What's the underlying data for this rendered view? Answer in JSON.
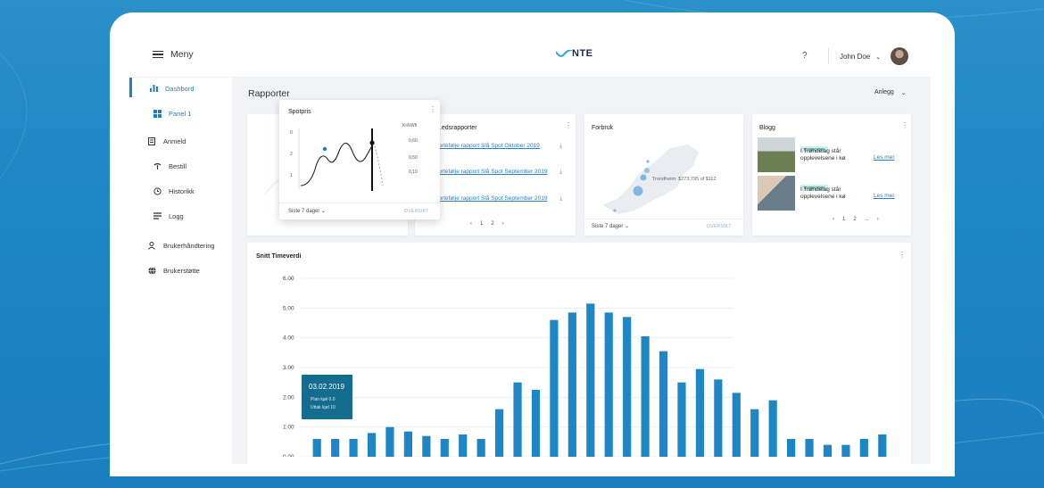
{
  "colors": {
    "accent": "#1b7fc0",
    "bar": "#1f86c6",
    "bar_light": "#a9d3ee",
    "tooltip_bg": "#146c8f",
    "tag_bg": "#c8f0e8"
  },
  "topbar": {
    "menu_label": "Meny",
    "logo": "NTE",
    "help": "?",
    "user_name": "John Doe"
  },
  "sidebar": {
    "items": [
      {
        "label": "Dashbord",
        "icon": "bar-chart-icon"
      },
      {
        "label": "Panel 1",
        "icon": "grid-icon"
      },
      {
        "label": "Anmeld",
        "icon": "document-icon"
      },
      {
        "label": "Bestill",
        "icon": "order-icon"
      },
      {
        "label": "Historikk",
        "icon": "history-icon"
      },
      {
        "label": "Logg",
        "icon": "list-icon"
      },
      {
        "label": "Brukerhåndtering",
        "icon": "user-icon"
      },
      {
        "label": "Brukerstøtte",
        "icon": "globe-icon"
      }
    ]
  },
  "main": {
    "title": "Rapporter",
    "filter_label": "Anlegg"
  },
  "spotpris": {
    "title": "Spotpris",
    "unit": "Kr/kWh",
    "y_left": [
      "0",
      "2",
      "1"
    ],
    "y_right": [
      "0,60",
      "0,50",
      "0,10"
    ],
    "period": "Siste 7 dager",
    "link": "OVERSIKT"
  },
  "rapporter": {
    "title": "...edsrapporter",
    "items": [
      "Portefølje rapport Slå Spot Oktober 2019",
      "Portefølje rapport Slå Spot September 2019",
      "Portefølje rapport Slå Spot September 2019"
    ],
    "pages": [
      "1",
      "2"
    ]
  },
  "forbruk": {
    "title": "Forbruk",
    "map_label": "Trondheim: $273,795 of $112",
    "period": "Siste 7 dager",
    "link": "OVERSIKT"
  },
  "blogg": {
    "title": "Blogg",
    "posts": [
      {
        "tag": "KATEGORI",
        "text": "I Trøndelag står opplevelsene i kø",
        "link": "Les mer"
      },
      {
        "tag": "KATEGORI",
        "text": "I Trøndelag står opplevelsene i kø",
        "link": "Les mer"
      }
    ],
    "pages": [
      "1",
      "2",
      "..."
    ]
  },
  "tooltip": {
    "date": "03.02.2019",
    "line1": "Plan kjøl 0.0",
    "line2": "Uttak kjøl 10"
  },
  "chart_data": {
    "type": "bar",
    "title": "Snitt Timeverdi",
    "ylim": [
      0,
      6
    ],
    "yticks": [
      "0.00",
      "1.00",
      "2.00",
      "3.00",
      "4.00",
      "5.00",
      "6.00"
    ],
    "series": [
      {
        "values": [
          0.6,
          0.6,
          0.6,
          0.8,
          1.0,
          0.85,
          0.7,
          0.6,
          0.75,
          0.6,
          1.6,
          2.5,
          2.25,
          4.6,
          4.85,
          5.15,
          4.85,
          4.7,
          4.05,
          3.55,
          2.5,
          2.95,
          2.6,
          2.15,
          1.6,
          1.9,
          0.6,
          0.6,
          0.4,
          0.4,
          0.6,
          0.75
        ]
      }
    ]
  }
}
